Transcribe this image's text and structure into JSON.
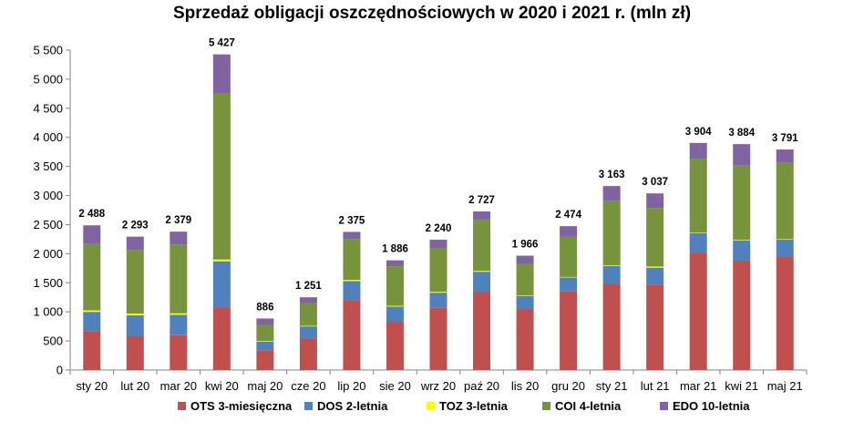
{
  "chart_data": {
    "type": "bar",
    "stacked": true,
    "title": "Sprzedaż obligacji oszczędnościowych w 2020 i 2021 r. (mln zł)",
    "xlabel": "",
    "ylabel": "",
    "ylim": [
      0,
      5500
    ],
    "yticks": [
      0,
      500,
      1000,
      1500,
      2000,
      2500,
      3000,
      3500,
      4000,
      4500,
      5000,
      5500
    ],
    "ytick_labels": [
      "0",
      "500",
      "1 000",
      "1 500",
      "2 000",
      "2 500",
      "3 000",
      "3 500",
      "4 000",
      "4 500",
      "5 000",
      "5 500"
    ],
    "grid": false,
    "legend_position": "bottom",
    "categories": [
      "sty 20",
      "lut 20",
      "mar 20",
      "kwi 20",
      "maj 20",
      "cze 20",
      "lip 20",
      "sie 20",
      "wrz 20",
      "paź 20",
      "lis 20",
      "gru 20",
      "sty 21",
      "lut 21",
      "mar 21",
      "kwi 21",
      "maj 21"
    ],
    "totals": [
      "2 488",
      "2 293",
      "2 379",
      "5 427",
      "886",
      "1 251",
      "2 375",
      "1 886",
      "2 240",
      "2 727",
      "1 966",
      "2 474",
      "3 163",
      "3 037",
      "3 904",
      "3 884",
      "3 791"
    ],
    "series": [
      {
        "name": "OTS 3-miesięczna",
        "color": "#c0504d",
        "values": [
          670,
          580,
          600,
          1080,
          340,
          540,
          1200,
          830,
          1070,
          1340,
          1050,
          1350,
          1480,
          1470,
          2020,
          1880,
          1950
        ]
      },
      {
        "name": "DOS 2-letnia",
        "color": "#4f81bd",
        "values": [
          330,
          360,
          350,
          790,
          150,
          210,
          330,
          260,
          260,
          350,
          220,
          240,
          310,
          290,
          330,
          350,
          290
        ]
      },
      {
        "name": "TOZ 3-letnia",
        "color": "#ffff00",
        "values": [
          25,
          30,
          25,
          30,
          10,
          10,
          20,
          15,
          15,
          15,
          10,
          10,
          10,
          20,
          10,
          10,
          10
        ]
      },
      {
        "name": "COI 4-letnia",
        "color": "#77933c",
        "values": [
          1143,
          1093,
          1184,
          2857,
          276,
          391,
          705,
          680,
          755,
          882,
          546,
          689,
          1103,
          1007,
          1274,
          1274,
          1311
        ]
      },
      {
        "name": "EDO 10-letnia",
        "color": "#8064a2",
        "values": [
          320,
          230,
          220,
          670,
          110,
          100,
          120,
          101,
          140,
          140,
          140,
          185,
          260,
          250,
          270,
          370,
          230
        ]
      }
    ]
  }
}
